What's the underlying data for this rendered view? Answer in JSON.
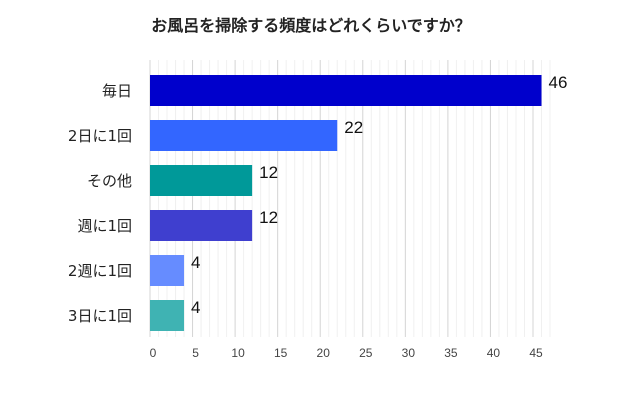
{
  "chart_data": {
    "type": "bar",
    "orientation": "horizontal",
    "title": "お風呂を掃除する頻度はどれくらいですか？",
    "categories": [
      "毎日",
      "2日に1回",
      "その他",
      "週に1回",
      "2週に1回",
      "3日に1回"
    ],
    "values": [
      46,
      22,
      12,
      12,
      4,
      4
    ],
    "colors": [
      "#0000cc",
      "#3366ff",
      "#009999",
      "#3f3fcf",
      "#668cff",
      "#3fb3b3"
    ],
    "xlabel": "",
    "ylabel": "",
    "xlim": [
      0,
      47
    ],
    "xticks": [
      0,
      5,
      10,
      15,
      20,
      25,
      30,
      35,
      40,
      45
    ],
    "grid": true,
    "data_labels": true
  }
}
